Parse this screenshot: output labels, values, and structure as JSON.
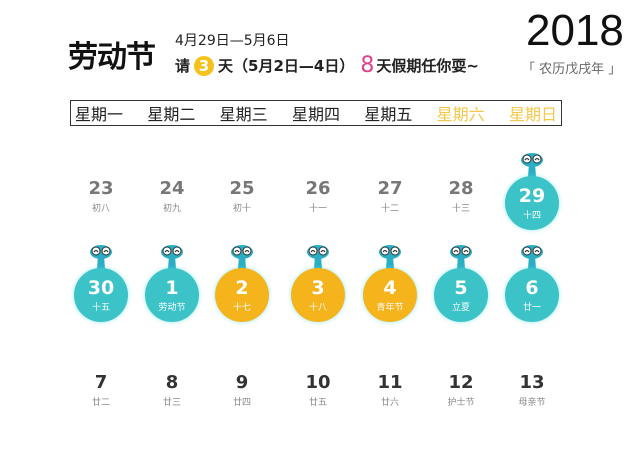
{
  "header": {
    "title": "劳动节",
    "date_range": "4月29日—5月6日",
    "line_prefix": "请",
    "leave_days": "3",
    "line_mid": "天（5月2日—4日）",
    "total_days": "8",
    "line_suffix": "天假期任你耍~",
    "year": "2018",
    "lunar_year": "「 农历戊戌年 」"
  },
  "weekdays": [
    {
      "label": "星期一"
    },
    {
      "label": "星期二"
    },
    {
      "label": "星期三"
    },
    {
      "label": "星期四"
    },
    {
      "label": "星期五"
    },
    {
      "label": "星期六",
      "weekend": true
    },
    {
      "label": "星期日",
      "weekend": true
    }
  ],
  "colors": {
    "holiday": "#3cc3c8",
    "leave": "#f5b31c",
    "mascot": "#2aaec4"
  },
  "rows": [
    [
      {
        "day": "23",
        "lunar": "初八"
      },
      {
        "day": "24",
        "lunar": "初九"
      },
      {
        "day": "25",
        "lunar": "初十"
      },
      {
        "day": "26",
        "lunar": "十一"
      },
      {
        "day": "27",
        "lunar": "十二"
      },
      {
        "day": "28",
        "lunar": "十三"
      },
      {
        "day": "29",
        "lunar": "十四",
        "type": "holiday"
      }
    ],
    [
      {
        "day": "30",
        "lunar": "十五",
        "type": "holiday"
      },
      {
        "day": "1",
        "lunar": "劳动节",
        "type": "holiday"
      },
      {
        "day": "2",
        "lunar": "十七",
        "type": "leave"
      },
      {
        "day": "3",
        "lunar": "十八",
        "type": "leave"
      },
      {
        "day": "4",
        "lunar": "青年节",
        "type": "leave"
      },
      {
        "day": "5",
        "lunar": "立夏",
        "type": "holiday"
      },
      {
        "day": "6",
        "lunar": "廿一",
        "type": "holiday"
      }
    ],
    [
      {
        "day": "7",
        "lunar": "廿二"
      },
      {
        "day": "8",
        "lunar": "廿三"
      },
      {
        "day": "9",
        "lunar": "廿四"
      },
      {
        "day": "10",
        "lunar": "廿五"
      },
      {
        "day": "11",
        "lunar": "廿六"
      },
      {
        "day": "12",
        "lunar": "护士节"
      },
      {
        "day": "13",
        "lunar": "母亲节"
      }
    ]
  ]
}
